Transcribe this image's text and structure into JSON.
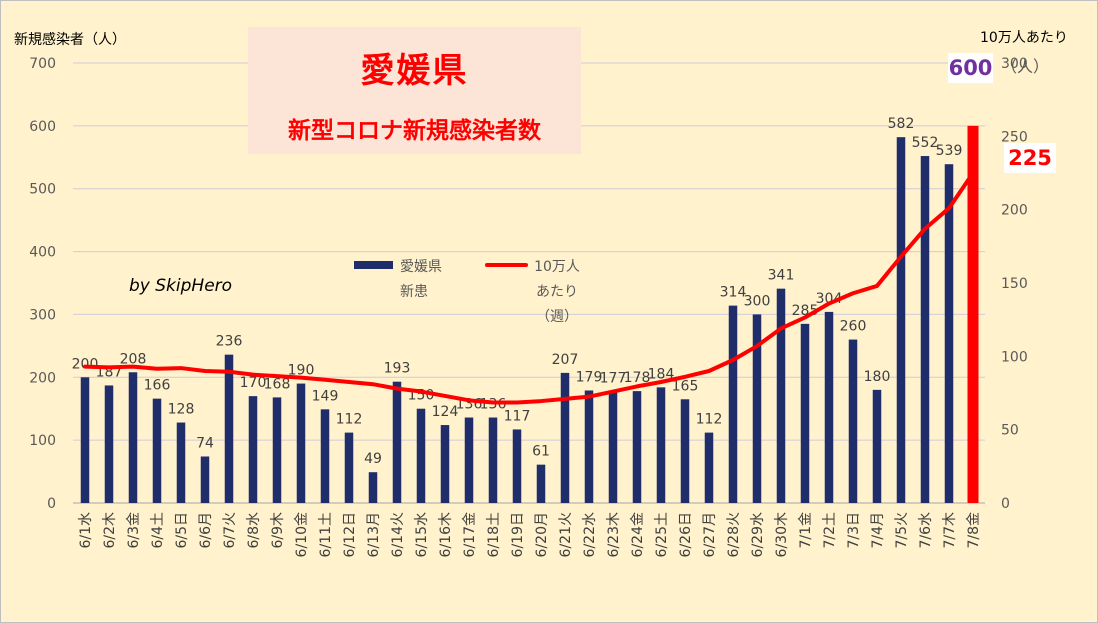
{
  "title": "愛媛県",
  "subtitle": "新型コロナ新規感染者数",
  "author": "by SkipHero",
  "left_axis_title": "新規感染者（人）",
  "right_axis_title": "10万人あたり",
  "right_axis_unit": "（人）",
  "callouts": {
    "cases_label": "600",
    "cases_color": "#7030a0",
    "per100k_label": "225",
    "per100k_color": "#ff0000"
  },
  "chart_data": {
    "type": "bar",
    "categories": [
      "6/1水",
      "6/2木",
      "6/3金",
      "6/4土",
      "6/5日",
      "6/6月",
      "6/7火",
      "6/8水",
      "6/9木",
      "6/10金",
      "6/11土",
      "6/12日",
      "6/13月",
      "6/14火",
      "6/15水",
      "6/16木",
      "6/17金",
      "6/18土",
      "6/19日",
      "6/20月",
      "6/21火",
      "6/22水",
      "6/23木",
      "6/24金",
      "6/25土",
      "6/26日",
      "6/27月",
      "6/28火",
      "6/29水",
      "6/30木",
      "7/1金",
      "7/2土",
      "7/3日",
      "7/4月",
      "7/5火",
      "7/6水",
      "7/7木",
      "7/8金"
    ],
    "series": [
      {
        "name": "愛媛県新患",
        "type": "bar",
        "axis": "left",
        "color": "#1f2d6b",
        "values": [
          200,
          187,
          208,
          166,
          128,
          74,
          236,
          170,
          168,
          190,
          149,
          112,
          49,
          193,
          150,
          124,
          136,
          136,
          117,
          61,
          207,
          179,
          177,
          178,
          184,
          165,
          112,
          314,
          300,
          341,
          285,
          304,
          260,
          180,
          582,
          552,
          539,
          600
        ],
        "highlight_last_color": "#ff0000"
      },
      {
        "name": "10万人あたり（週）",
        "type": "line",
        "axis": "right",
        "color": "#ff0000",
        "values": [
          93,
          92.5,
          93,
          91.5,
          92,
          90,
          89.5,
          87.5,
          86.5,
          85.5,
          84,
          82.5,
          81,
          78,
          76,
          73,
          70,
          68.5,
          68.5,
          69.5,
          71,
          72.5,
          76,
          79.5,
          82.5,
          86,
          90,
          97.5,
          107,
          119,
          126.5,
          136,
          143,
          148,
          168,
          187,
          201,
          225
        ]
      }
    ],
    "left_axis": {
      "min": 0,
      "max": 700,
      "ticks": [
        0,
        100,
        200,
        300,
        400,
        500,
        600,
        700
      ]
    },
    "right_axis": {
      "min": 0,
      "max": 300,
      "ticks": [
        0,
        50,
        100,
        150,
        200,
        250,
        300
      ]
    },
    "legend": {
      "position": "center",
      "bar_label_lines": [
        "愛媛県",
        "新患"
      ],
      "line_label_lines": [
        "10万人",
        "あたり",
        "（週）"
      ]
    },
    "grid": true
  }
}
